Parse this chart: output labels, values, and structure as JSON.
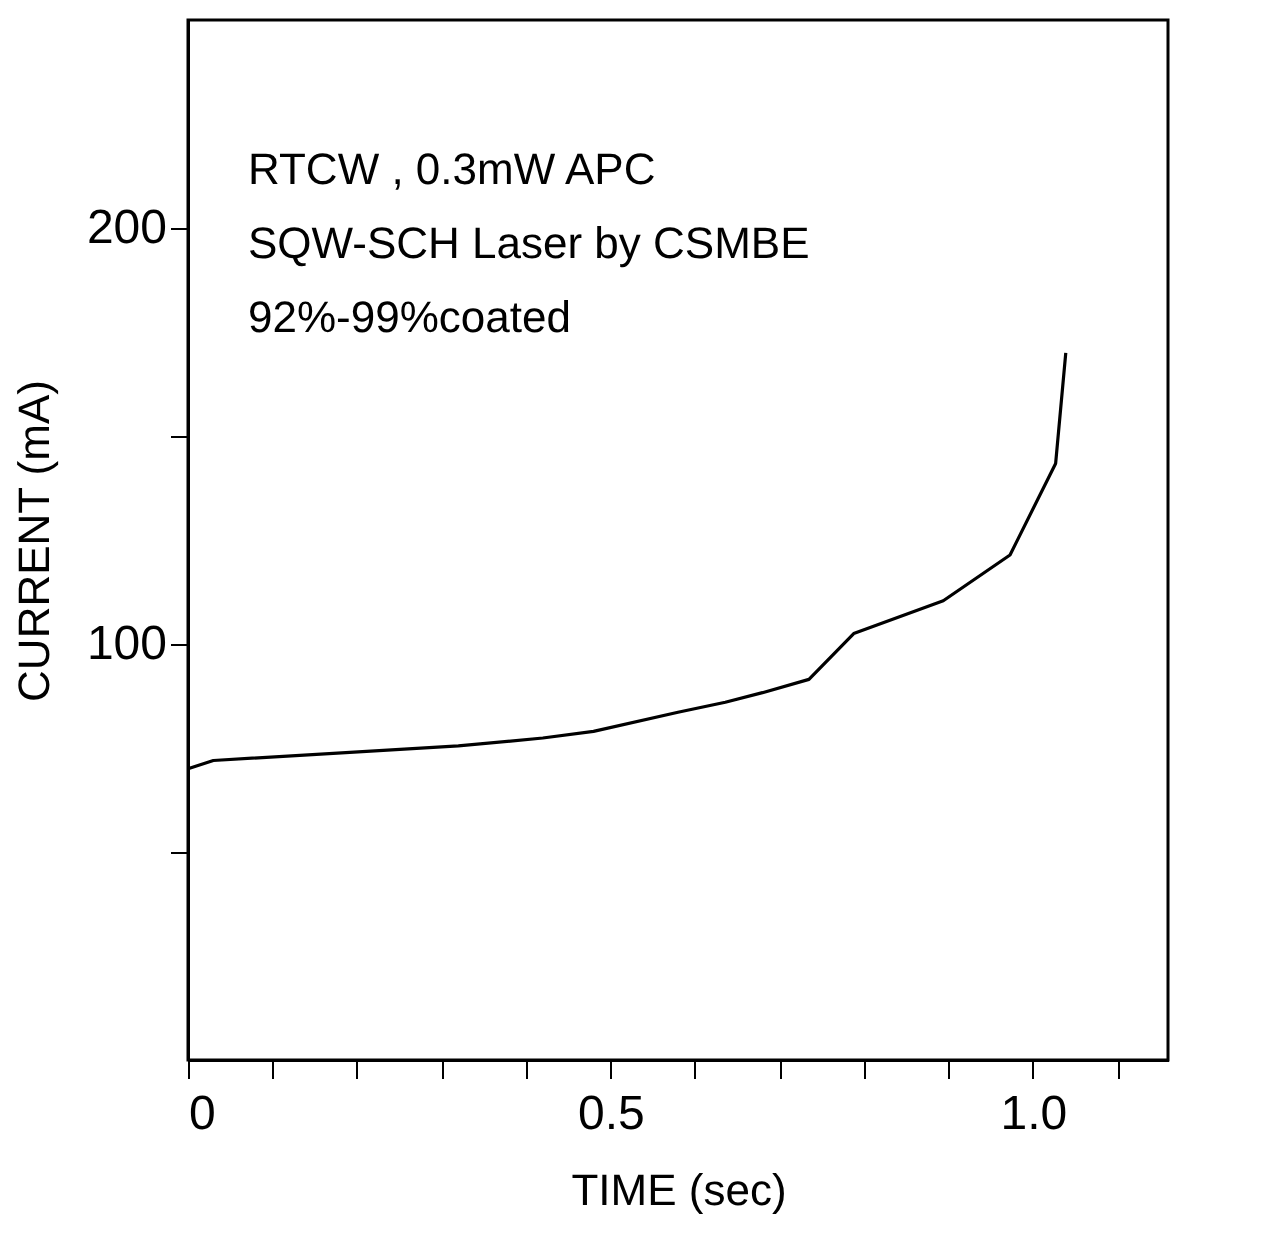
{
  "chart_data": {
    "type": "line",
    "xlabel": "TIME (sec)",
    "ylabel": "CURRENT  (mA)",
    "annotations": [
      "RTCW ,  0.3mW  APC",
      "SQW-SCH Laser by CSMBE",
      "92%-99%coated"
    ],
    "x": [
      0,
      0.03,
      0.32,
      0.42,
      0.48,
      0.58,
      0.636,
      0.68,
      0.735,
      0.788,
      0.894,
      0.973,
      1.027,
      1.039
    ],
    "series": [
      {
        "color": "#000000",
        "values": [
          70,
          72,
          75.5,
          77.4,
          79,
          83.6,
          86,
          88.3,
          91.5,
          102.5,
          110.4,
          121.4,
          143.4,
          170
        ]
      }
    ],
    "xlim": [
      0,
      1.16
    ],
    "ylim": [
      0,
      250
    ],
    "xticks": [
      0,
      {
        "value": 0.1,
        "label": null
      },
      {
        "value": 0.2,
        "label": null
      },
      {
        "value": 0.3,
        "label": null
      },
      {
        "value": 0.4,
        "label": null
      },
      0.5,
      {
        "value": 0.6,
        "label": null
      },
      {
        "value": 0.7,
        "label": null
      },
      {
        "value": 0.8,
        "label": null
      },
      {
        "value": 0.9,
        "label": null
      },
      {
        "value": 1.0,
        "label": "1.0"
      },
      {
        "value": 1.1,
        "label": null
      }
    ],
    "yticks": [
      {
        "value": 50,
        "label": null
      },
      100,
      {
        "value": 150,
        "label": null
      },
      200
    ],
    "grid": false,
    "marker": "none",
    "line_style": "solid"
  }
}
